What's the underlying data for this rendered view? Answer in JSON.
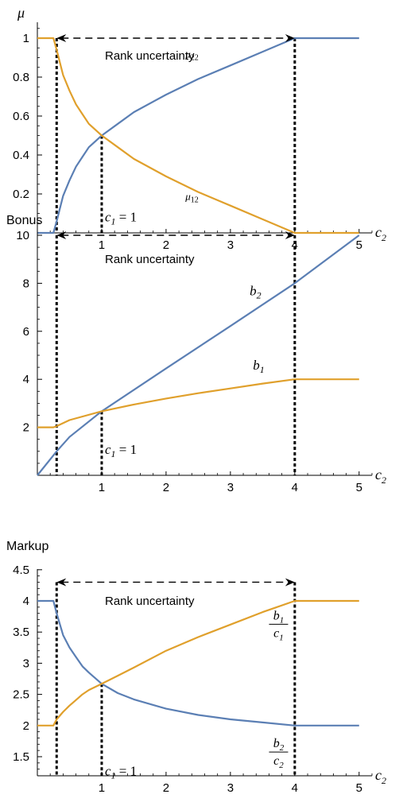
{
  "colors": {
    "blue": "#5b7fb4",
    "orange": "#e0a02c",
    "axis": "#000000"
  },
  "chart_data": [
    {
      "type": "line",
      "title": "μ",
      "xlabel": "c₂",
      "xlim": [
        0,
        5.2
      ],
      "ylim": [
        0,
        1.05
      ],
      "x_ticks": [
        1,
        2,
        3,
        4,
        5
      ],
      "y_ticks": [
        0.2,
        0.4,
        0.6,
        0.8,
        1
      ],
      "y_tick_labels": [
        "0.2",
        "0.4",
        "0.6",
        "0.8",
        "1"
      ],
      "series": [
        {
          "name": "μ22",
          "color": "#5b7fb4",
          "x": [
            0,
            0.25,
            0.3,
            0.4,
            0.5,
            0.6,
            0.7,
            0.8,
            1,
            1.25,
            1.5,
            2,
            2.5,
            3,
            3.5,
            4,
            4.5,
            5
          ],
          "y": [
            0,
            0,
            0.06,
            0.19,
            0.27,
            0.34,
            0.39,
            0.44,
            0.5,
            0.56,
            0.62,
            0.71,
            0.79,
            0.86,
            0.93,
            1,
            1,
            1
          ]
        },
        {
          "name": "μ12",
          "color": "#e0a02c",
          "x": [
            0,
            0.25,
            0.3,
            0.4,
            0.5,
            0.6,
            0.7,
            0.8,
            1,
            1.25,
            1.5,
            2,
            2.5,
            3,
            3.5,
            4,
            4.5,
            5
          ],
          "y": [
            1,
            1,
            0.94,
            0.81,
            0.73,
            0.66,
            0.61,
            0.56,
            0.5,
            0.44,
            0.38,
            0.29,
            0.21,
            0.14,
            0.07,
            0,
            0,
            0
          ]
        }
      ],
      "series_labels": [
        {
          "text": "μ22",
          "at": [
            2.3,
            0.9
          ]
        },
        {
          "text": "μ12",
          "at": [
            2.3,
            0.17
          ]
        }
      ],
      "vlines": [
        0.3,
        1,
        4
      ],
      "range_arrow": {
        "from": 0.3,
        "to": 4,
        "y": 1,
        "label": "Rank uncertainty",
        "label_at": [
          1.05,
          0.91
        ]
      },
      "note": {
        "text": "c₁ = 1",
        "at": [
          1.05,
          0.06
        ]
      }
    },
    {
      "type": "line",
      "title": "Bonus",
      "xlabel": "c₂",
      "xlim": [
        0,
        5.2
      ],
      "ylim": [
        0,
        10.4
      ],
      "x_ticks": [
        1,
        2,
        3,
        4,
        5
      ],
      "y_ticks": [
        2,
        4,
        6,
        8,
        10
      ],
      "y_tick_labels": [
        "2",
        "4",
        "6",
        "8",
        "10"
      ],
      "series": [
        {
          "name": "b2",
          "color": "#5b7fb4",
          "x": [
            0,
            0.3,
            0.5,
            1,
            2,
            3,
            4,
            5
          ],
          "y": [
            0,
            1,
            1.6,
            2.67,
            4.45,
            6.22,
            8,
            10
          ]
        },
        {
          "name": "b1",
          "color": "#e0a02c",
          "x": [
            0,
            0.25,
            0.3,
            0.5,
            1,
            1.5,
            2,
            2.5,
            3,
            3.5,
            4,
            4.5,
            5
          ],
          "y": [
            2,
            2,
            2.05,
            2.3,
            2.67,
            2.95,
            3.2,
            3.42,
            3.62,
            3.82,
            4,
            4,
            4
          ]
        }
      ],
      "series_labels": [
        {
          "text": "b2",
          "at": [
            3.3,
            7.5
          ]
        },
        {
          "text": "b1",
          "at": [
            3.35,
            4.4
          ]
        }
      ],
      "vlines": [
        0.3,
        1,
        4
      ],
      "range_arrow": {
        "from": 0.3,
        "to": 4,
        "y": 10,
        "label": "Rank uncertainty",
        "label_at": [
          1.05,
          9.0
        ]
      },
      "note": {
        "text": "c₁ = 1",
        "at": [
          1.05,
          0.9
        ]
      }
    },
    {
      "type": "line",
      "title": "Markup",
      "xlabel": "c₂",
      "xlim": [
        0,
        5.2
      ],
      "ylim": [
        1,
        4.5
      ],
      "x_ticks": [
        1,
        2,
        3,
        4,
        5
      ],
      "y_ticks": [
        1.5,
        2,
        2.5,
        3,
        3.5,
        4,
        4.5
      ],
      "y_tick_labels": [
        "1.5",
        "2",
        "2.5",
        "3",
        "3.5",
        "4",
        "4.5"
      ],
      "series": [
        {
          "name": "b2/c2",
          "color": "#5b7fb4",
          "x": [
            0,
            0.25,
            0.3,
            0.4,
            0.5,
            0.6,
            0.7,
            0.8,
            1,
            1.25,
            1.5,
            2,
            2.5,
            3,
            3.5,
            4,
            4.5,
            5
          ],
          "y": [
            4,
            4,
            3.8,
            3.45,
            3.25,
            3.1,
            2.95,
            2.85,
            2.67,
            2.52,
            2.42,
            2.27,
            2.17,
            2.1,
            2.05,
            2,
            2,
            2
          ]
        },
        {
          "name": "b1/c1",
          "color": "#e0a02c",
          "x": [
            0,
            0.25,
            0.3,
            0.4,
            0.5,
            0.6,
            0.7,
            0.8,
            1,
            1.25,
            1.5,
            2,
            2.5,
            3,
            3.5,
            4,
            4.5,
            5
          ],
          "y": [
            2,
            2,
            2.1,
            2.22,
            2.32,
            2.41,
            2.5,
            2.57,
            2.67,
            2.8,
            2.93,
            3.2,
            3.42,
            3.62,
            3.82,
            4,
            4,
            4
          ]
        }
      ],
      "series_labels": [
        {
          "text": "b1/c1",
          "at": [
            3.6,
            3.6
          ]
        },
        {
          "text": "b2/c2",
          "at": [
            3.6,
            1.55
          ]
        }
      ],
      "vlines": [
        0.3,
        1,
        4
      ],
      "range_arrow": {
        "from": 0.3,
        "to": 4,
        "y": 4.3,
        "label": "Rank uncertainty",
        "label_at": [
          1.05,
          4.0
        ]
      },
      "note": {
        "text": "c₁ = 1",
        "at": [
          1.05,
          1.2
        ]
      }
    }
  ]
}
